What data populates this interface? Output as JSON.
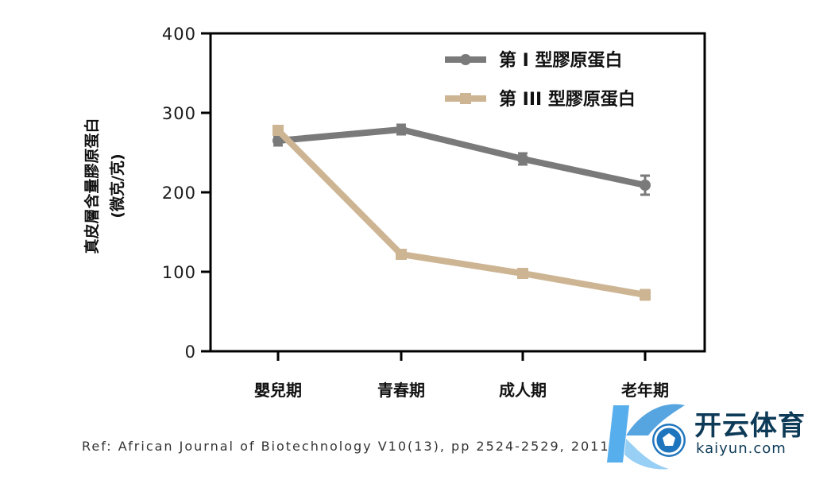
{
  "chart_data": {
    "type": "line",
    "title": "",
    "xlabel": "",
    "ylabel": "真皮層含量膠原蛋白",
    "ylabel_unit": "(微克/克)",
    "ylim": [
      0,
      400
    ],
    "yticks": [
      0,
      100,
      200,
      300,
      400
    ],
    "categories": [
      "嬰兒期",
      "青春期",
      "成人期",
      "老年期"
    ],
    "grid": false,
    "legend_position": "top-right",
    "series": [
      {
        "name": "第 I 型膠原蛋白",
        "color": "#7a7a7a",
        "marker": "circle",
        "values": [
          265,
          279,
          242,
          209
        ],
        "errors": [
          6,
          6,
          7,
          12
        ]
      },
      {
        "name": "第 III 型膠原蛋白",
        "color": "#cdb594",
        "marker": "square",
        "values": [
          278,
          122,
          98,
          71
        ],
        "errors": [
          5,
          3,
          3,
          6
        ]
      }
    ]
  },
  "footer": {
    "reference": "Ref: African  Journal of Biotechnology  V10(13), pp 2524-2529, 2011"
  },
  "watermark": {
    "brand_cn": "开云体育",
    "brand_en": "kaiyun.com",
    "colors": {
      "primary": "#0d3a57",
      "accent": "#2d8fd8"
    }
  }
}
